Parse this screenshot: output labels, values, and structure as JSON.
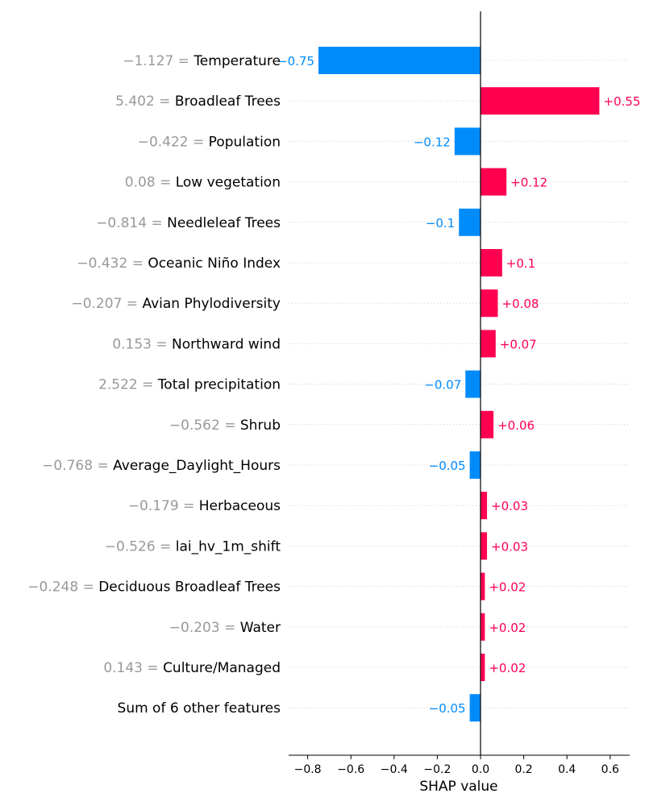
{
  "chart_data": {
    "type": "bar",
    "xlabel": "SHAP value",
    "xlim": [
      -0.88,
      0.69
    ],
    "xticks": [
      "−0.8",
      "−0.6",
      "−0.4",
      "−0.2",
      "0.0",
      "0.2",
      "0.4",
      "0.6"
    ],
    "xtick_values": [
      -0.8,
      -0.6,
      -0.4,
      -0.2,
      0.0,
      0.2,
      0.4,
      0.6
    ],
    "grid": "dotted horizontal guide lines",
    "colors": {
      "positive": "#ff0051",
      "negative": "#008bfb",
      "feature_value": "#999999",
      "feature_name": "#000000"
    },
    "features": [
      {
        "value_text": "−1.127 =",
        "name": "Temperature",
        "shap": -0.75,
        "label": "−0.75"
      },
      {
        "value_text": "5.402 =",
        "name": "Broadleaf Trees",
        "shap": 0.55,
        "label": "+0.55"
      },
      {
        "value_text": "−0.422 =",
        "name": "Population",
        "shap": -0.12,
        "label": "−0.12"
      },
      {
        "value_text": "0.08 =",
        "name": "Low vegetation",
        "shap": 0.12,
        "label": "+0.12"
      },
      {
        "value_text": "−0.814 =",
        "name": "Needleleaf Trees",
        "shap": -0.1,
        "label": "−0.1"
      },
      {
        "value_text": "−0.432 =",
        "name": "Oceanic Niño Index",
        "shap": 0.1,
        "label": "+0.1"
      },
      {
        "value_text": "−0.207 =",
        "name": "Avian Phylodiversity",
        "shap": 0.08,
        "label": "+0.08"
      },
      {
        "value_text": "0.153 =",
        "name": "Northward wind",
        "shap": 0.07,
        "label": "+0.07"
      },
      {
        "value_text": "2.522 =",
        "name": "Total precipitation",
        "shap": -0.07,
        "label": "−0.07"
      },
      {
        "value_text": "−0.562 =",
        "name": "Shrub",
        "shap": 0.06,
        "label": "+0.06"
      },
      {
        "value_text": "−0.768 =",
        "name": "Average_Daylight_Hours",
        "shap": -0.05,
        "label": "−0.05"
      },
      {
        "value_text": "−0.179 =",
        "name": "Herbaceous",
        "shap": 0.03,
        "label": "+0.03"
      },
      {
        "value_text": "−0.526 =",
        "name": "lai_hv_1m_shift",
        "shap": 0.03,
        "label": "+0.03"
      },
      {
        "value_text": "−0.248 =",
        "name": "Deciduous Broadleaf Trees",
        "shap": 0.02,
        "label": "+0.02"
      },
      {
        "value_text": "−0.203 =",
        "name": "Water",
        "shap": 0.02,
        "label": "+0.02"
      },
      {
        "value_text": "0.143 =",
        "name": "Culture/Managed",
        "shap": 0.02,
        "label": "+0.02"
      },
      {
        "value_text": "",
        "name": "Sum of 6 other features",
        "shap": -0.05,
        "label": "−0.05"
      }
    ]
  }
}
